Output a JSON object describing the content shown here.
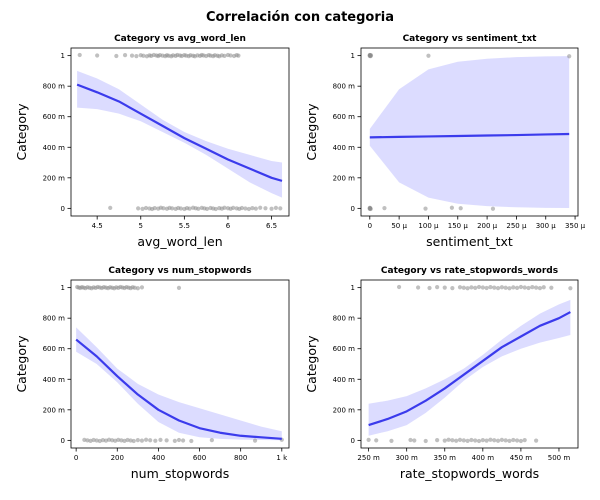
{
  "figure": {
    "title": "Correlación con categoria",
    "colors": {
      "points": "#8c8c8c",
      "line": "#3b3bec",
      "band": "#d6d6ff"
    }
  },
  "chart_data": [
    {
      "type": "scatter",
      "title": "Category vs avg_word_len",
      "xlabel": "avg_word_len",
      "ylabel": "Category",
      "xlim": [
        4.2,
        6.7
      ],
      "ylim": [
        -0.05,
        1.05
      ],
      "xticks": [
        4.5,
        5,
        5.5,
        6,
        6.5
      ],
      "xtick_labels": [
        "4.5",
        "5",
        "5.5",
        "6",
        "6.5"
      ],
      "yticks": [
        0,
        0.2,
        0.4,
        0.6,
        0.8,
        1
      ],
      "ytick_labels": [
        "0",
        "200 m",
        "400 m",
        "600 m",
        "800 m",
        "1"
      ],
      "points_y1": [
        4.3,
        4.5,
        4.72,
        4.82,
        4.9,
        4.95,
        5.0,
        5.03,
        5.07,
        5.1,
        5.12,
        5.15,
        5.18,
        5.2,
        5.22,
        5.25,
        5.28,
        5.3,
        5.32,
        5.35,
        5.37,
        5.4,
        5.42,
        5.45,
        5.47,
        5.5,
        5.52,
        5.55,
        5.57,
        5.6,
        5.62,
        5.65,
        5.68,
        5.7,
        5.72,
        5.75,
        5.78,
        5.8,
        5.83,
        5.85,
        5.88,
        5.9,
        5.93,
        5.96,
        6.0,
        6.03,
        6.07,
        6.1,
        6.12
      ],
      "points_y0": [
        4.65,
        4.97,
        5.02,
        5.06,
        5.1,
        5.13,
        5.16,
        5.2,
        5.23,
        5.26,
        5.3,
        5.33,
        5.36,
        5.4,
        5.43,
        5.46,
        5.5,
        5.53,
        5.56,
        5.6,
        5.63,
        5.66,
        5.7,
        5.73,
        5.76,
        5.8,
        5.83,
        5.86,
        5.9,
        5.93,
        5.96,
        6.0,
        6.03,
        6.06,
        6.1,
        6.13,
        6.16,
        6.2,
        6.24,
        6.28,
        6.32,
        6.37,
        6.43,
        6.5,
        6.55,
        6.6
      ],
      "fit": {
        "x": [
          4.27,
          4.5,
          4.75,
          5.0,
          5.25,
          5.5,
          5.75,
          6.0,
          6.25,
          6.5,
          6.62
        ],
        "y": [
          0.81,
          0.76,
          0.7,
          0.62,
          0.54,
          0.46,
          0.39,
          0.32,
          0.26,
          0.2,
          0.18
        ],
        "lower": [
          0.66,
          0.65,
          0.62,
          0.57,
          0.5,
          0.43,
          0.35,
          0.26,
          0.17,
          0.1,
          0.07
        ],
        "upper": [
          0.9,
          0.85,
          0.78,
          0.68,
          0.58,
          0.5,
          0.44,
          0.39,
          0.35,
          0.31,
          0.3
        ]
      }
    },
    {
      "type": "scatter",
      "title": "Category vs sentiment_txt",
      "xlabel": "sentiment_txt",
      "ylabel": "Category",
      "xlim": [
        -1.5e-05,
        0.000355
      ],
      "ylim": [
        -0.05,
        1.05
      ],
      "xticks": [
        0,
        5e-05,
        0.0001,
        0.00015,
        0.0002,
        0.00025,
        0.0003,
        0.00035
      ],
      "xtick_labels": [
        "0",
        "50 µ",
        "100 µ",
        "150 µ",
        "200 µ",
        "250 µ",
        "300 µ",
        "350 µ"
      ],
      "yticks": [
        0,
        0.2,
        0.4,
        0.6,
        0.8,
        1
      ],
      "ytick_labels": [
        "0",
        "200 m",
        "400 m",
        "600 m",
        "800 m",
        "1"
      ],
      "points_y1": [
        0,
        0,
        0,
        5e-07,
        1e-06,
        1.5e-06,
        2e-06,
        0.0001,
        0.00034
      ],
      "points_y0": [
        0,
        0,
        0,
        5e-07,
        1e-06,
        1.5e-06,
        2.5e-05,
        9.5e-05,
        0.00014,
        0.000155,
        0.00021
      ],
      "fit": {
        "x": [
          0,
          5e-05,
          0.0001,
          0.00015,
          0.0002,
          0.00025,
          0.0003,
          0.00034
        ],
        "y": [
          0.465,
          0.468,
          0.471,
          0.474,
          0.477,
          0.48,
          0.484,
          0.487
        ],
        "lower": [
          0.41,
          0.17,
          0.07,
          0.03,
          0.015,
          0.007,
          0.003,
          0.002
        ],
        "upper": [
          0.52,
          0.78,
          0.91,
          0.96,
          0.98,
          0.99,
          0.995,
          0.997
        ]
      }
    },
    {
      "type": "scatter",
      "title": "Category vs num_stopwords",
      "xlabel": "num_stopwords",
      "ylabel": "Category",
      "xlim": [
        -25,
        1035
      ],
      "ylim": [
        -0.05,
        1.05
      ],
      "xticks": [
        0,
        200,
        400,
        600,
        800,
        1000
      ],
      "xtick_labels": [
        "0",
        "200",
        "400",
        "600",
        "800",
        "1 k"
      ],
      "yticks": [
        0,
        0.2,
        0.4,
        0.6,
        0.8,
        1
      ],
      "ytick_labels": [
        "0",
        "200 m",
        "400 m",
        "600 m",
        "800 m",
        "1"
      ],
      "points_y1": [
        5,
        12,
        20,
        28,
        36,
        45,
        55,
        65,
        75,
        85,
        95,
        105,
        115,
        125,
        135,
        145,
        155,
        165,
        175,
        185,
        195,
        205,
        215,
        225,
        235,
        245,
        255,
        265,
        275,
        285,
        300,
        320,
        500
      ],
      "points_y0": [
        40,
        55,
        70,
        85,
        100,
        115,
        130,
        145,
        160,
        175,
        190,
        205,
        220,
        235,
        250,
        265,
        280,
        300,
        320,
        340,
        360,
        385,
        410,
        440,
        480,
        500,
        520,
        560,
        660,
        870,
        1000
      ],
      "fit": {
        "x": [
          0,
          100,
          200,
          300,
          400,
          500,
          600,
          700,
          800,
          900,
          1000
        ],
        "y": [
          0.66,
          0.55,
          0.42,
          0.3,
          0.2,
          0.13,
          0.08,
          0.05,
          0.03,
          0.02,
          0.01
        ],
        "lower": [
          0.58,
          0.5,
          0.38,
          0.24,
          0.12,
          0.05,
          0.02,
          0.01,
          0.005,
          0.002,
          0.001
        ],
        "upper": [
          0.74,
          0.61,
          0.47,
          0.37,
          0.3,
          0.25,
          0.21,
          0.17,
          0.13,
          0.09,
          0.06
        ]
      }
    },
    {
      "type": "scatter",
      "title": "Category vs rate_stopwords_words",
      "xlabel": "rate_stopwords_words",
      "ylabel": "Category",
      "xlim": [
        0.24,
        0.525
      ],
      "ylim": [
        -0.05,
        1.05
      ],
      "xticks": [
        0.25,
        0.3,
        0.35,
        0.4,
        0.45,
        0.5
      ],
      "xtick_labels": [
        "250 m",
        "300 m",
        "350 m",
        "400 m",
        "450 m",
        "500 m"
      ],
      "yticks": [
        0,
        0.2,
        0.4,
        0.6,
        0.8,
        1
      ],
      "ytick_labels": [
        "0",
        "200 m",
        "400 m",
        "600 m",
        "800 m",
        "1"
      ],
      "points_y1": [
        0.29,
        0.315,
        0.33,
        0.34,
        0.35,
        0.36,
        0.37,
        0.375,
        0.38,
        0.385,
        0.39,
        0.395,
        0.4,
        0.405,
        0.41,
        0.415,
        0.42,
        0.425,
        0.43,
        0.435,
        0.44,
        0.445,
        0.45,
        0.455,
        0.46,
        0.465,
        0.47,
        0.475,
        0.48,
        0.49,
        0.515
      ],
      "points_y0": [
        0.25,
        0.26,
        0.28,
        0.305,
        0.31,
        0.325,
        0.34,
        0.35,
        0.355,
        0.36,
        0.365,
        0.37,
        0.375,
        0.38,
        0.385,
        0.39,
        0.395,
        0.4,
        0.405,
        0.41,
        0.415,
        0.42,
        0.425,
        0.43,
        0.435,
        0.44,
        0.445,
        0.45,
        0.455,
        0.47
      ],
      "fit": {
        "x": [
          0.25,
          0.275,
          0.3,
          0.325,
          0.35,
          0.375,
          0.4,
          0.425,
          0.45,
          0.475,
          0.5,
          0.515
        ],
        "y": [
          0.1,
          0.14,
          0.19,
          0.26,
          0.34,
          0.43,
          0.52,
          0.61,
          0.68,
          0.75,
          0.8,
          0.84
        ],
        "lower": [
          0.03,
          0.06,
          0.1,
          0.18,
          0.28,
          0.39,
          0.48,
          0.55,
          0.6,
          0.64,
          0.67,
          0.69
        ],
        "upper": [
          0.24,
          0.26,
          0.29,
          0.34,
          0.4,
          0.47,
          0.56,
          0.66,
          0.75,
          0.83,
          0.89,
          0.92
        ]
      }
    }
  ]
}
